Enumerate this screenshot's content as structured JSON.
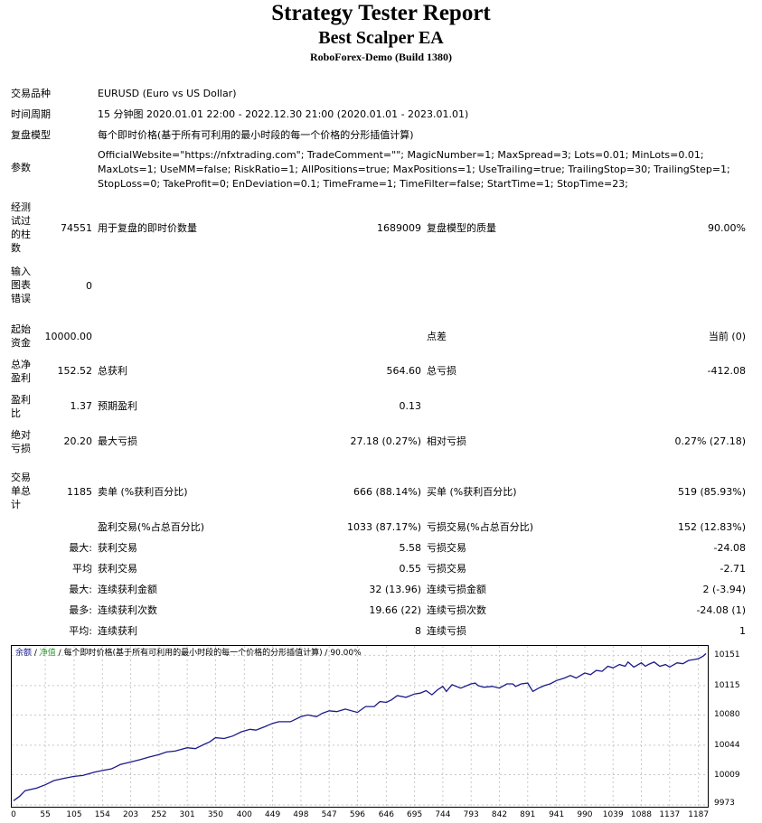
{
  "title": "Strategy Tester Report",
  "ea_name": "Best Scalper EA",
  "server": "RoboForex-Demo (Build 1380)",
  "settings": {
    "symbol_label": "交易品种",
    "symbol_value": "EURUSD (Euro vs US Dollar)",
    "period_label": "时间周期",
    "period_value": "15 分钟图 2020.01.01 22:00 - 2022.12.30 21:00 (2020.01.01 - 2023.01.01)",
    "model_label": "复盘模型",
    "model_value": "每个即时价格(基于所有可利用的最小时段的每一个价格的分形插值计算)",
    "params_label": "参数",
    "params_value": "OfficialWebsite=\"https://nfxtrading.com\"; TradeComment=\"\"; MagicNumber=1; MaxSpread=3; Lots=0.01; MinLots=0.01; MaxLots=1; UseMM=false; RiskRatio=1; AllPositions=true; MaxPositions=1; UseTrailing=true; TrailingStop=30; TrailingStep=1; StopLoss=0; TakeProfit=0; EnDeviation=0.1; TimeFrame=1; TimeFilter=false; StartTime=1; StopTime=23;"
  },
  "summary": {
    "bars_label": "经测试过的柱数",
    "bars_value": "74551",
    "ticks_label": "用于复盘的即时价数量",
    "ticks_value": "1689009",
    "quality_label": "复盘模型的质量",
    "quality_value": "90.00%",
    "errors_label": "输入图表错误",
    "errors_value": "0",
    "deposit_label": "起始资金",
    "deposit_value": "10000.00",
    "spread_label": "点差",
    "spread_value": "当前 (0)",
    "net_label": "总净盈利",
    "net_value": "152.52",
    "gross_profit_label": "总获利",
    "gross_profit_value": "564.60",
    "gross_loss_label": "总亏损",
    "gross_loss_value": "-412.08",
    "pf_label": "盈利比",
    "pf_value": "1.37",
    "payoff_label": "预期盈利",
    "payoff_value": "0.13",
    "abs_dd_label": "绝对亏损",
    "abs_dd_value": "20.20",
    "max_dd_label": "最大亏损",
    "max_dd_value": "27.18 (0.27%)",
    "rel_dd_label": "相对亏损",
    "rel_dd_value": "0.27% (27.18)",
    "trades_label": "交易单总计",
    "trades_value": "1185",
    "short_label": "卖单 (%获利百分比)",
    "short_value": "666 (88.14%)",
    "long_label": "买单 (%获利百分比)",
    "long_value": "519 (85.93%)",
    "profit_trades_label": "盈利交易(%占总百分比)",
    "profit_trades_value": "1033 (87.17%)",
    "loss_trades_label": "亏损交易(%占总百分比)",
    "loss_trades_value": "152 (12.83%)",
    "largest_prefix": "最大:",
    "largest_profit_label": "获利交易",
    "largest_profit_value": "5.58",
    "largest_loss_label": "亏损交易",
    "largest_loss_value": "-24.08",
    "average_prefix": "平均",
    "avg_profit_label": "获利交易",
    "avg_profit_value": "0.55",
    "avg_loss_label": "亏损交易",
    "avg_loss_value": "-2.71",
    "max_prefix": "最大:",
    "max_cons_profit_label": "连续获利金额",
    "max_cons_profit_value": "32 (13.96)",
    "max_cons_loss_label": "连续亏损金额",
    "max_cons_loss_value": "2 (-3.94)",
    "maximal_prefix": "最多:",
    "maximal_cons_wins_label": "连续获利次数",
    "maximal_cons_wins_value": "19.66 (22)",
    "maximal_cons_losses_label": "连续亏损次数",
    "maximal_cons_losses_value": "-24.08 (1)",
    "avg_cons_prefix": "平均:",
    "avg_cons_wins_label": "连续获利",
    "avg_cons_wins_value": "8",
    "avg_cons_losses_label": "连续亏损",
    "avg_cons_losses_value": "1"
  },
  "chart_legend": {
    "balance": "余额",
    "sep1": " / ",
    "equity": "净值",
    "sep2": " / 每个即时价格(基于所有可利用的最小时段的每一个价格的分形插值计算) / ",
    "quality": "90.00%"
  },
  "chart_data": {
    "type": "line",
    "series": [
      {
        "name": "余额",
        "color": "#1a1a8a",
        "x": [
          0,
          10,
          20,
          40,
          55,
          70,
          90,
          105,
          120,
          140,
          154,
          170,
          185,
          203,
          220,
          235,
          252,
          265,
          280,
          290,
          301,
          315,
          330,
          340,
          350,
          365,
          380,
          395,
          410,
          420,
          435,
          449,
          460,
          480,
          498,
          510,
          525,
          535,
          547,
          560,
          575,
          596,
          610,
          625,
          635,
          646,
          655,
          665,
          680,
          695,
          705,
          715,
          725,
          735,
          744,
          750,
          760,
          775,
          793,
          800,
          805,
          815,
          830,
          842,
          855,
          865,
          870,
          880,
          891,
          900,
          910,
          920,
          930,
          941,
          955,
          965,
          975,
          990,
          1000,
          1010,
          1020,
          1030,
          1039,
          1050,
          1060,
          1065,
          1075,
          1088,
          1095,
          1100,
          1110,
          1120,
          1130,
          1137,
          1150,
          1160,
          1170,
          1180,
          1187,
          1195,
          1200
        ],
        "values": [
          9978,
          9983,
          9990,
          9993,
          9997,
          10002,
          10005,
          10007,
          10008,
          10012,
          10014,
          10016,
          10021,
          10024,
          10027,
          10030,
          10033,
          10036,
          10037,
          10039,
          10041,
          10040,
          10045,
          10048,
          10053,
          10052,
          10055,
          10060,
          10063,
          10062,
          10066,
          10070,
          10072,
          10072,
          10078,
          10080,
          10078,
          10082,
          10085,
          10084,
          10087,
          10083,
          10090,
          10090,
          10096,
          10095,
          10098,
          10103,
          10101,
          10105,
          10106,
          10109,
          10104,
          10110,
          10114,
          10108,
          10116,
          10112,
          10117,
          10118,
          10115,
          10113,
          10114,
          10112,
          10117,
          10117,
          10114,
          10117,
          10118,
          10108,
          10112,
          10115,
          10117,
          10121,
          10124,
          10127,
          10124,
          10130,
          10128,
          10133,
          10132,
          10138,
          10136,
          10140,
          10138,
          10143,
          10137,
          10142,
          10138,
          10140,
          10143,
          10138,
          10140,
          10137,
          10142,
          10141,
          10145,
          10146,
          10147,
          10150,
          10153
        ]
      }
    ],
    "x_ticks": [
      "0",
      "55",
      "105",
      "154",
      "203",
      "252",
      "301",
      "350",
      "400",
      "449",
      "498",
      "547",
      "596",
      "646",
      "695",
      "744",
      "793",
      "842",
      "891",
      "941",
      "990",
      "1039",
      "1088",
      "1137",
      "1187"
    ],
    "y_ticks": [
      "10151",
      "10115",
      "10080",
      "10044",
      "10009",
      "9973"
    ],
    "xlim": [
      0,
      1200
    ],
    "ylim": [
      9973,
      10160
    ],
    "grid": true
  }
}
